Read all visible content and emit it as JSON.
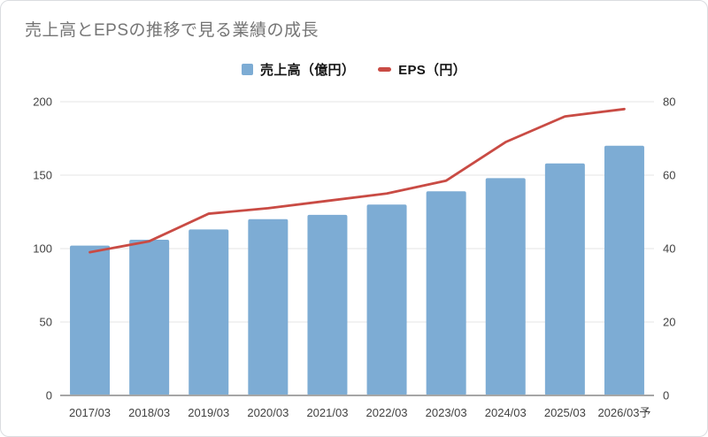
{
  "window": {
    "title": "売上高とEPSの推移で見る業績の成長"
  },
  "legend": {
    "items": [
      {
        "label": "売上高（億円）",
        "marker": "square-icon",
        "color": "#7dacd4"
      },
      {
        "label": "EPS（円）",
        "marker": "dash-icon",
        "color": "#c94b44"
      }
    ]
  },
  "chart_data": {
    "type": "bar+line",
    "title": "売上高とEPSの推移で見る業績の成長",
    "categories": [
      "2017/03",
      "2018/03",
      "2019/03",
      "2020/03",
      "2021/03",
      "2022/03",
      "2023/03",
      "2024/03",
      "2025/03",
      "2026/03予"
    ],
    "series": [
      {
        "name": "売上高（億円）",
        "type": "bar",
        "axis": "left",
        "color": "#7dacd4",
        "values": [
          102,
          106,
          113,
          120,
          123,
          130,
          139,
          148,
          158,
          170
        ]
      },
      {
        "name": "EPS（円）",
        "type": "line",
        "axis": "right",
        "color": "#c94b44",
        "values": [
          39,
          42,
          49.5,
          51,
          53,
          55,
          58.5,
          69,
          76,
          78
        ]
      }
    ],
    "axes": {
      "left": {
        "min": 0,
        "max": 200,
        "ticks": [
          0,
          50,
          100,
          150,
          200
        ]
      },
      "right": {
        "min": 0,
        "max": 80,
        "ticks": [
          0,
          20,
          40,
          60,
          80
        ]
      }
    },
    "grid": true,
    "legend_position": "top",
    "colors": {
      "grid_line": "#e4e4e4",
      "axis_line": "#a6a6a6",
      "tick_label": "#424242",
      "title_text": "#757575"
    }
  }
}
